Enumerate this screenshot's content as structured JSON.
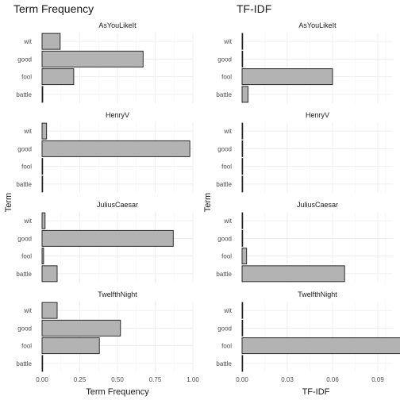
{
  "chart_data": [
    {
      "type": "bar",
      "orientation": "horizontal",
      "title": "Term Frequency",
      "xlabel": "Term Frequency",
      "ylabel": "Term",
      "xlim": [
        0,
        1.0
      ],
      "x_ticks": [
        "0.00",
        "0.25",
        "0.50",
        "0.75",
        "1.00"
      ],
      "x_tick_values": [
        0,
        0.25,
        0.5,
        0.75,
        1.0
      ],
      "categories": [
        "battle",
        "fool",
        "good",
        "wit"
      ],
      "grid": true,
      "facets": [
        {
          "name": "AsYouLikeIt",
          "values": [
            0.005,
            0.21,
            0.67,
            0.12
          ]
        },
        {
          "name": "HenryV",
          "values": [
            0,
            0,
            0.98,
            0.03
          ]
        },
        {
          "name": "JuliusCaesar",
          "values": [
            0.1,
            0.01,
            0.87,
            0.02
          ]
        },
        {
          "name": "TwelfthNight",
          "values": [
            0,
            0.38,
            0.52,
            0.1
          ]
        }
      ]
    },
    {
      "type": "bar",
      "orientation": "horizontal",
      "title": "TF-IDF",
      "xlabel": "TF-IDF",
      "ylabel": "Term",
      "xlim": [
        0,
        0.1
      ],
      "x_ticks": [
        "0.00",
        "0.03",
        "0.06",
        "0.09"
      ],
      "x_tick_values": [
        0,
        0.03,
        0.06,
        0.09
      ],
      "categories": [
        "battle",
        "fool",
        "good",
        "wit"
      ],
      "grid": true,
      "facets": [
        {
          "name": "AsYouLikeIt",
          "values": [
            0.004,
            0.06,
            0,
            0
          ]
        },
        {
          "name": "HenryV",
          "values": [
            0,
            0,
            0,
            0
          ]
        },
        {
          "name": "JuliusCaesar",
          "values": [
            0.068,
            0.003,
            0,
            0
          ]
        },
        {
          "name": "TwelfthNight",
          "values": [
            0,
            0.107,
            0,
            0
          ]
        }
      ]
    }
  ]
}
